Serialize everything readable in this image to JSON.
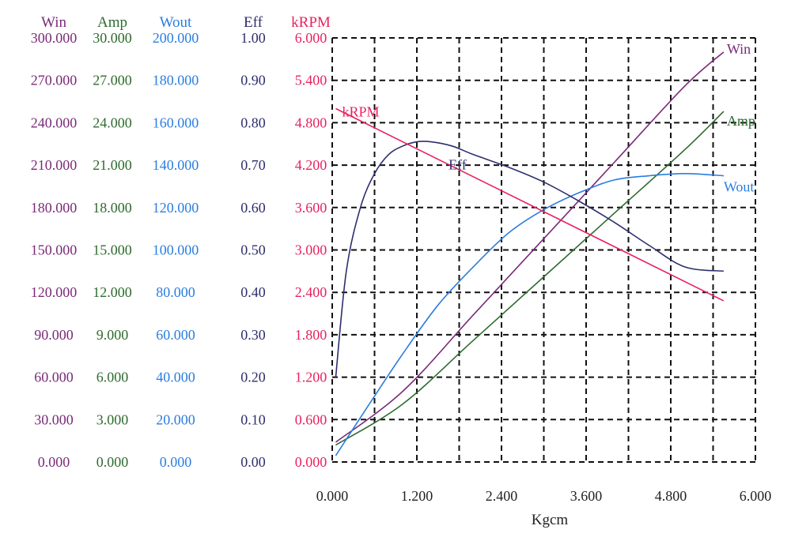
{
  "chart_data": {
    "type": "line",
    "xlabel": "Kgcm",
    "x_range": [
      0,
      6
    ],
    "x_ticks": [
      "0.000",
      "1.200",
      "2.400",
      "3.600",
      "4.800",
      "6.000"
    ],
    "grid": true,
    "grid_style": "dashed",
    "axes": [
      {
        "id": "win",
        "label": "Win",
        "color": "#7a2a78",
        "range": [
          0,
          300
        ],
        "ticks": [
          "0.000",
          "30.000",
          "60.000",
          "90.000",
          "120.000",
          "150.000",
          "180.000",
          "210.000",
          "240.000",
          "270.000",
          "300.000"
        ]
      },
      {
        "id": "amp",
        "label": "Amp",
        "color": "#2e6b2e",
        "range": [
          0,
          30
        ],
        "ticks": [
          "0.000",
          "3.000",
          "6.000",
          "9.000",
          "12.000",
          "15.000",
          "18.000",
          "21.000",
          "24.000",
          "27.000",
          "30.000"
        ]
      },
      {
        "id": "wout",
        "label": "Wout",
        "color": "#2a7de0",
        "range": [
          0,
          200
        ],
        "ticks": [
          "0.000",
          "20.000",
          "40.000",
          "60.000",
          "80.000",
          "100.000",
          "120.000",
          "140.000",
          "160.000",
          "180.000",
          "200.000"
        ]
      },
      {
        "id": "eff",
        "label": "Eff",
        "color": "#2e2e6e",
        "range": [
          0,
          1
        ],
        "ticks": [
          "0.00",
          "0.10",
          "0.20",
          "0.30",
          "0.40",
          "0.50",
          "0.60",
          "0.70",
          "0.80",
          "0.90",
          "1.00"
        ]
      },
      {
        "id": "krpm",
        "label": "kRPM",
        "color": "#e8225e",
        "range": [
          0,
          6
        ],
        "ticks": [
          "0.000",
          "0.600",
          "1.200",
          "1.800",
          "2.400",
          "3.000",
          "3.600",
          "4.200",
          "4.800",
          "5.400",
          "6.000"
        ]
      }
    ],
    "series": [
      {
        "name": "Win",
        "axis": "win",
        "color": "#7a2a78",
        "label": "Win",
        "x": [
          0.05,
          1.0,
          2.0,
          3.0,
          4.0,
          5.0,
          5.55
        ],
        "y": [
          14,
          50,
          104,
          158,
          212,
          266,
          290
        ]
      },
      {
        "name": "Amp",
        "axis": "amp",
        "color": "#2e6b2e",
        "label": "Amp",
        "x": [
          0.05,
          1.0,
          2.0,
          3.0,
          4.0,
          5.0,
          5.55
        ],
        "y": [
          1.2,
          4.1,
          8.6,
          13.1,
          17.6,
          22.1,
          24.8
        ]
      },
      {
        "name": "Wout",
        "axis": "wout",
        "color": "#2a7de0",
        "label": "Wout",
        "x": [
          0.05,
          0.5,
          1.0,
          1.5,
          2.0,
          2.5,
          3.0,
          3.5,
          4.0,
          4.5,
          5.0,
          5.55
        ],
        "y": [
          3,
          26,
          51,
          74,
          92,
          108,
          119,
          127,
          133,
          135,
          136,
          135
        ]
      },
      {
        "name": "Eff",
        "axis": "eff",
        "color": "#2e2e6e",
        "label": "Eff",
        "x": [
          0.05,
          0.2,
          0.4,
          0.6,
          0.8,
          1.0,
          1.2,
          1.4,
          1.7,
          2.0,
          2.5,
          3.0,
          3.5,
          4.0,
          4.5,
          5.0,
          5.55
        ],
        "y": [
          0.2,
          0.45,
          0.6,
          0.68,
          0.725,
          0.745,
          0.755,
          0.755,
          0.745,
          0.725,
          0.695,
          0.66,
          0.615,
          0.565,
          0.51,
          0.46,
          0.45
        ]
      },
      {
        "name": "kRPM",
        "axis": "krpm",
        "color": "#e8225e",
        "label": "kRPM",
        "x": [
          0.05,
          5.55
        ],
        "y": [
          5.0,
          2.28
        ]
      }
    ]
  }
}
